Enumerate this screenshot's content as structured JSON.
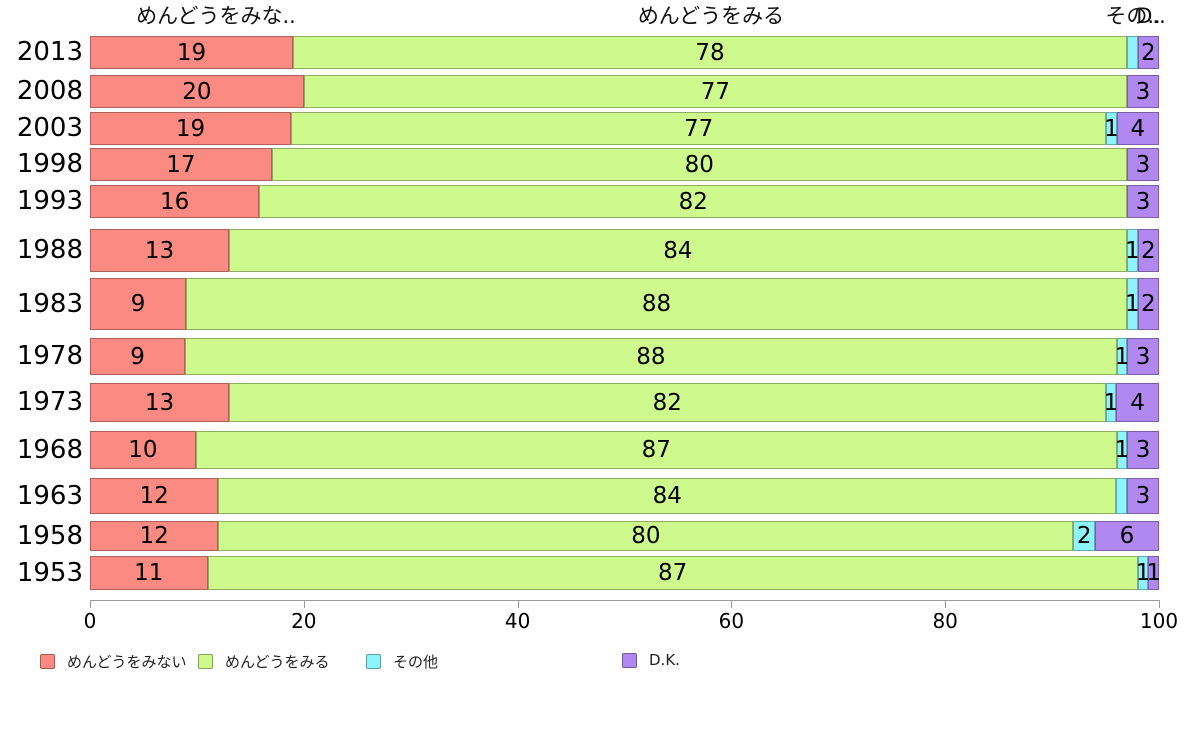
{
  "chart_data": {
    "type": "bar",
    "stacked": true,
    "orientation": "horizontal",
    "title": "",
    "xlabel": "",
    "ylabel": "",
    "xlim": [
      0,
      100
    ],
    "xticks": [
      0,
      20,
      40,
      60,
      80,
      100
    ],
    "grid": false,
    "legend_position": "bottom",
    "categories": [
      "2013",
      "2008",
      "2003",
      "1998",
      "1993",
      "1988",
      "1983",
      "1978",
      "1973",
      "1968",
      "1963",
      "1958",
      "1953"
    ],
    "top_labels": [
      "めんどうをみな..",
      "めんどうをみる",
      "その..",
      "D.."
    ],
    "series": [
      {
        "name": "めんどうをみない",
        "color": "#fa8a82",
        "values": [
          19,
          20,
          19,
          17,
          16,
          13,
          9,
          9,
          13,
          10,
          12,
          12,
          11
        ],
        "show_labels": [
          true,
          true,
          true,
          true,
          true,
          true,
          true,
          true,
          true,
          true,
          true,
          true,
          true
        ]
      },
      {
        "name": "めんどうをみる",
        "color": "#cef98c",
        "values": [
          78,
          77,
          77,
          80,
          82,
          84,
          88,
          88,
          82,
          87,
          84,
          80,
          87
        ],
        "show_labels": [
          true,
          true,
          true,
          true,
          true,
          true,
          true,
          true,
          true,
          true,
          true,
          true,
          true
        ]
      },
      {
        "name": "その他",
        "color": "#8cf4fa",
        "values": [
          1,
          0,
          1,
          0,
          0,
          1,
          1,
          1,
          1,
          1,
          1,
          2,
          1
        ],
        "show_labels": [
          false,
          false,
          true,
          false,
          false,
          true,
          true,
          true,
          true,
          true,
          false,
          true,
          true
        ]
      },
      {
        "name": "D.K.",
        "color": "#b187f0",
        "values": [
          2,
          3,
          4,
          3,
          3,
          2,
          2,
          3,
          4,
          3,
          3,
          6,
          1
        ],
        "show_labels": [
          true,
          true,
          true,
          true,
          true,
          true,
          true,
          true,
          true,
          true,
          true,
          true,
          true
        ]
      }
    ],
    "legend_items": [
      "めんどうをみない",
      "めんどうをみる",
      "その他",
      "D.K."
    ]
  }
}
